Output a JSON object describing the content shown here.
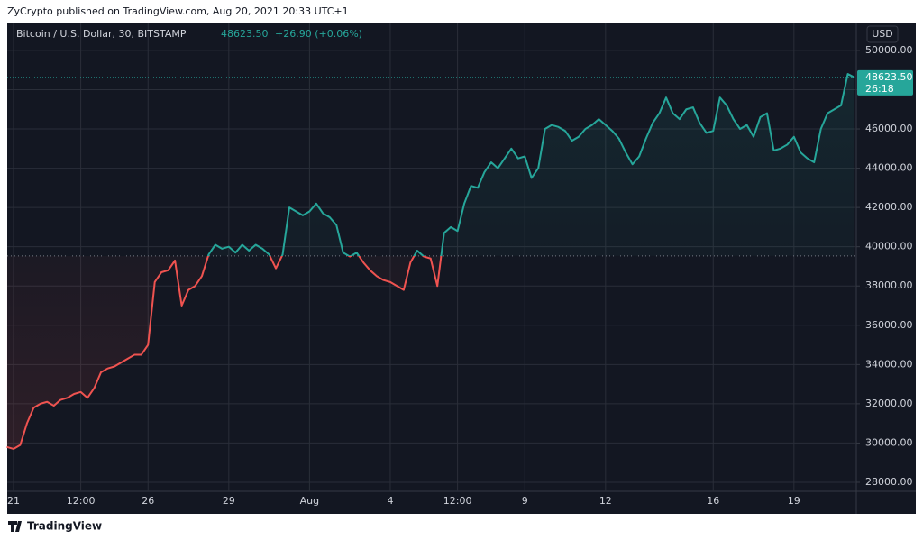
{
  "header": {
    "publisher_line": "ZyCrypto published on TradingView.com, Aug 20, 2021 20:33 UTC+1"
  },
  "chart_data": {
    "type": "line",
    "title": "Bitcoin / U.S. Dollar, 30, BITSTAMP",
    "last_price": {
      "value": 48623.5,
      "label": "48623.50"
    },
    "change": "+26.90 (+0.06%)",
    "countdown": "26:18",
    "currency": "USD",
    "baseline": 39530,
    "up_color": "#26a69a",
    "down_color": "#ef5350",
    "grid": true,
    "categories": [
      null,
      "21",
      null,
      null,
      null,
      null,
      null,
      null,
      null,
      null,
      null,
      "12:00",
      null,
      null,
      null,
      null,
      null,
      null,
      null,
      null,
      null,
      "26",
      null,
      null,
      null,
      null,
      null,
      null,
      null,
      null,
      null,
      null,
      null,
      "29",
      null,
      null,
      null,
      null,
      null,
      null,
      null,
      null,
      null,
      null,
      null,
      "Aug",
      null,
      null,
      null,
      null,
      null,
      null,
      null,
      null,
      null,
      null,
      null,
      "4",
      null,
      null,
      null,
      null,
      null,
      null,
      null,
      null,
      null,
      "12:00",
      null,
      null,
      null,
      null,
      null,
      null,
      null,
      null,
      null,
      "9",
      null,
      null,
      null,
      null,
      null,
      null,
      null,
      null,
      null,
      null,
      null,
      "12",
      null,
      null,
      null,
      null,
      null,
      null,
      null,
      null,
      null,
      null,
      null,
      null,
      null,
      null,
      null,
      "16",
      null,
      null,
      null,
      null,
      null,
      null,
      null,
      null,
      null,
      null,
      null,
      "19",
      null,
      null,
      null,
      null,
      null,
      null,
      null,
      null,
      null
    ],
    "values": [
      29800,
      29700,
      29900,
      31000,
      31800,
      32000,
      32100,
      31900,
      32200,
      32300,
      32500,
      32600,
      32300,
      32800,
      33600,
      33800,
      33900,
      34100,
      34300,
      34500,
      34500,
      35000,
      38200,
      38700,
      38800,
      39300,
      37000,
      37800,
      38000,
      38500,
      39600,
      40100,
      39900,
      40000,
      39700,
      40100,
      39800,
      40100,
      39900,
      39600,
      38900,
      39600,
      42000,
      41800,
      41600,
      41800,
      42200,
      41700,
      41500,
      41100,
      39700,
      39500,
      39700,
      39200,
      38800,
      38500,
      38300,
      38200,
      38000,
      37800,
      39200,
      39800,
      39500,
      39400,
      38000,
      40700,
      41000,
      40800,
      42200,
      43100,
      43000,
      43800,
      44300,
      44000,
      44500,
      45000,
      44500,
      44600,
      43500,
      44000,
      46000,
      46200,
      46100,
      45900,
      45400,
      45600,
      46000,
      46200,
      46500,
      46200,
      45900,
      45500,
      44800,
      44200,
      44600,
      45500,
      46300,
      46800,
      47600,
      46800,
      46500,
      47000,
      47100,
      46300,
      45800,
      45900,
      47600,
      47200,
      46500,
      46000,
      46200,
      45600,
      46600,
      46800,
      44900,
      45000,
      45200,
      45600,
      44800,
      44500,
      44300,
      46000,
      46800,
      47000,
      47200,
      48800,
      48623.5
    ],
    "ylim": [
      27540,
      51420
    ],
    "yticks": [
      {
        "value": 28000,
        "label": "28000.00"
      },
      {
        "value": 30000,
        "label": "30000.00"
      },
      {
        "value": 32000,
        "label": "32000.00"
      },
      {
        "value": 34000,
        "label": "34000.00"
      },
      {
        "value": 36000,
        "label": "36000.00"
      },
      {
        "value": 38000,
        "label": "38000.00"
      },
      {
        "value": 40000,
        "label": "40000.00"
      },
      {
        "value": 42000,
        "label": "42000.00"
      },
      {
        "value": 44000,
        "label": "44000.00"
      },
      {
        "value": 46000,
        "label": "46000.00"
      },
      {
        "value": 48000,
        "label": "48000.00"
      },
      {
        "value": 50000,
        "label": "50000.00"
      }
    ]
  },
  "footer": {
    "brand": "TradingView"
  }
}
